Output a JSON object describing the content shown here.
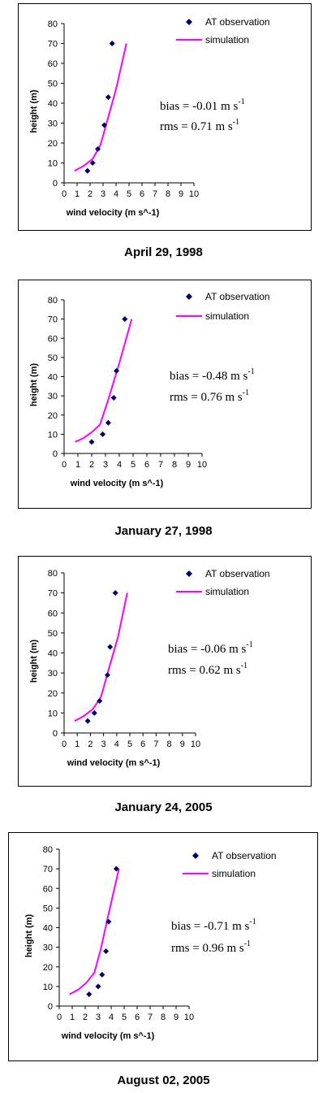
{
  "chart_data": [
    {
      "type": "scatter",
      "caption": "April 29, 1998",
      "xlabel": "wind velocity (m s^-1)",
      "ylabel": "height (m)",
      "xlim": [
        0,
        10
      ],
      "ylim": [
        0,
        80
      ],
      "xticks": [
        "0",
        "1",
        "2",
        "3",
        "4",
        "5",
        "6",
        "7",
        "8",
        "9",
        "10"
      ],
      "yticks": [
        "0",
        "10",
        "20",
        "30",
        "40",
        "50",
        "60",
        "70",
        "80"
      ],
      "legend": [
        "AT observation",
        "simulation"
      ],
      "observation": {
        "x": [
          1.8,
          2.2,
          2.6,
          3.1,
          3.4,
          3.7
        ],
        "y": [
          6,
          10,
          17,
          29,
          43,
          70
        ]
      },
      "simulation": {
        "x": [
          0.8,
          1.5,
          2.2,
          2.8,
          3.4,
          4.0,
          4.8
        ],
        "y": [
          6,
          8.5,
          12,
          19,
          33,
          47,
          70
        ]
      },
      "bias_text": "bias = -0.01 m s",
      "rms_text": "rms = 0.71 m s",
      "unit_sup": "-1"
    },
    {
      "type": "scatter",
      "caption": "January 27, 1998",
      "xlabel": "wind velocity (m s^-1)",
      "ylabel": "height (m)",
      "xlim": [
        0,
        10
      ],
      "ylim": [
        0,
        80
      ],
      "xticks": [
        "0",
        "1",
        "2",
        "3",
        "4",
        "5",
        "6",
        "7",
        "8",
        "9",
        "10"
      ],
      "yticks": [
        "0",
        "10",
        "20",
        "30",
        "40",
        "50",
        "60",
        "70",
        "80"
      ],
      "legend": [
        "AT observation",
        "simulation"
      ],
      "observation": {
        "x": [
          2.0,
          2.8,
          3.2,
          3.6,
          3.8,
          4.4
        ],
        "y": [
          6,
          10,
          16,
          29,
          43,
          70
        ]
      },
      "simulation": {
        "x": [
          0.8,
          1.4,
          2.0,
          2.6,
          3.2,
          4.0,
          4.9
        ],
        "y": [
          6,
          8,
          11,
          15,
          28,
          47,
          70
        ]
      },
      "bias_text": "bias = -0.48 m s",
      "rms_text": "rms = 0.76 m s",
      "unit_sup": "-1"
    },
    {
      "type": "scatter",
      "caption": "January 24, 2005",
      "xlabel": "wind velocity (m s^-1)",
      "ylabel": "height (m)",
      "xlim": [
        0,
        10
      ],
      "ylim": [
        0,
        80
      ],
      "xticks": [
        "0",
        "1",
        "2",
        "3",
        "4",
        "5",
        "6",
        "7",
        "8",
        "9",
        "10"
      ],
      "yticks": [
        "0",
        "10",
        "20",
        "30",
        "40",
        "50",
        "60",
        "70",
        "80"
      ],
      "legend": [
        "AT observation",
        "simulation"
      ],
      "observation": {
        "x": [
          1.8,
          2.3,
          2.7,
          3.3,
          3.5,
          3.9
        ],
        "y": [
          6,
          10,
          16,
          29,
          43,
          70
        ]
      },
      "simulation": {
        "x": [
          0.8,
          1.5,
          2.2,
          2.8,
          3.4,
          4.1,
          4.8
        ],
        "y": [
          6,
          8.5,
          12,
          18,
          32,
          48,
          70
        ]
      },
      "bias_text": "bias = -0.06 m s",
      "rms_text": "rms = 0.62 m s",
      "unit_sup": "-1"
    },
    {
      "type": "scatter",
      "caption": "August 02, 2005",
      "xlabel": "wind velocity (m s^-1)",
      "ylabel": "height (m)",
      "xlim": [
        0,
        10
      ],
      "ylim": [
        0,
        80
      ],
      "xticks": [
        "0",
        "1",
        "2",
        "3",
        "4",
        "5",
        "6",
        "7",
        "8",
        "9",
        "10"
      ],
      "yticks": [
        "0",
        "10",
        "20",
        "30",
        "40",
        "50",
        "60",
        "70",
        "80"
      ],
      "legend": [
        "AT observation",
        "simulation"
      ],
      "observation": {
        "x": [
          2.3,
          3.0,
          3.3,
          3.6,
          3.8,
          4.4
        ],
        "y": [
          6,
          10,
          16,
          28,
          43,
          70
        ]
      },
      "simulation": {
        "x": [
          0.8,
          1.5,
          2.1,
          2.7,
          3.2,
          3.8,
          4.6
        ],
        "y": [
          6,
          8.5,
          12,
          17,
          29,
          47,
          70
        ]
      },
      "bias_text": "bias = -0.71 m s",
      "rms_text": "rms = 0.96 m s",
      "unit_sup": "-1"
    }
  ],
  "colors": {
    "observation": "#000066",
    "simulation": "#ff00ff"
  }
}
